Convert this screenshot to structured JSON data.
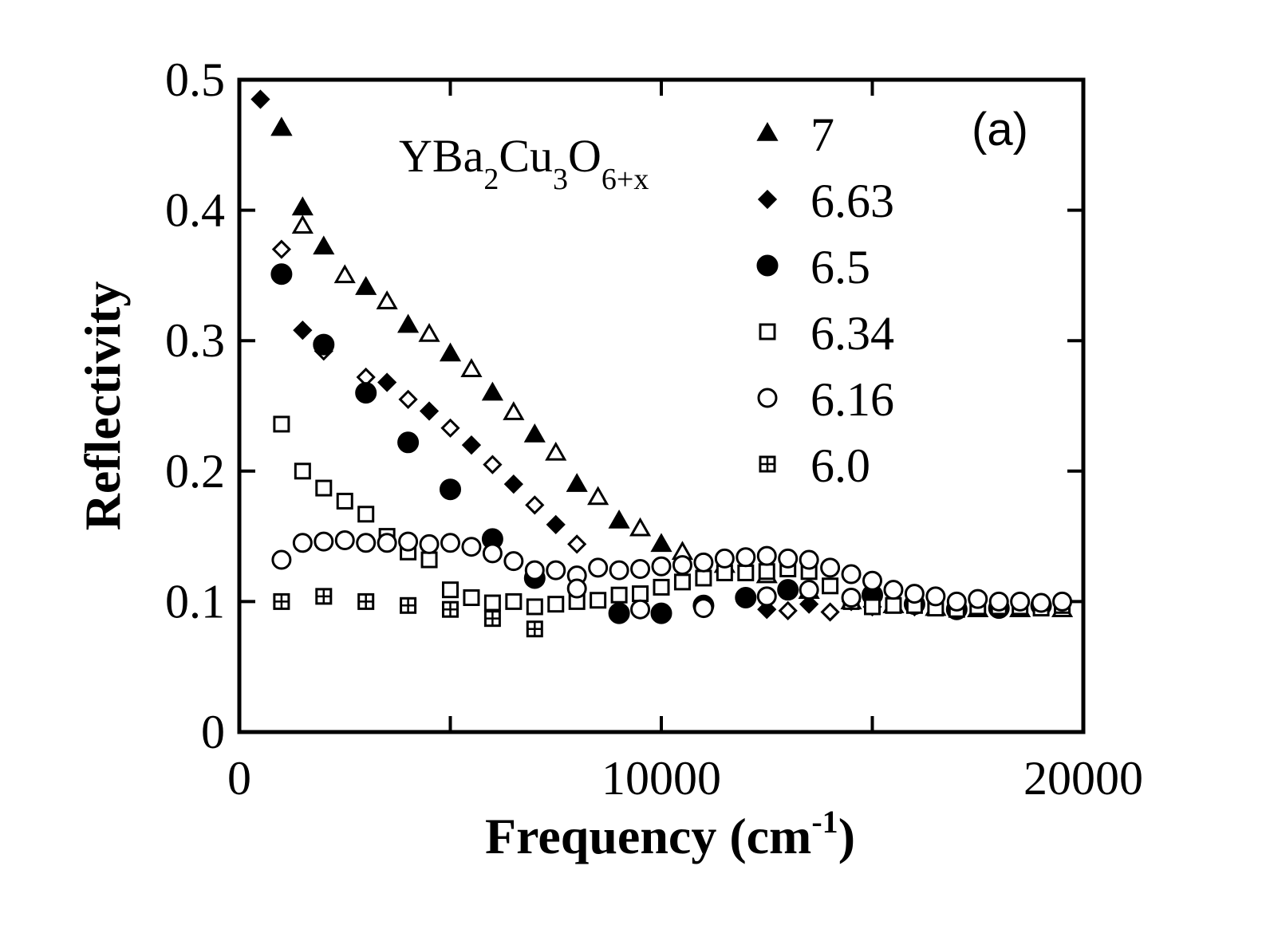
{
  "chart_data": {
    "type": "scatter",
    "title": "",
    "panel_label": "(a)",
    "xlabel": "Frequency (cm",
    "xlabel_sup": "-1",
    "xlabel_close": ")",
    "ylabel": "Reflectivity",
    "xlim": [
      0,
      20000
    ],
    "ylim": [
      0,
      0.5
    ],
    "xticks": [
      0,
      10000,
      20000
    ],
    "xtick_labels": [
      "0",
      "10000",
      "20000"
    ],
    "yticks": [
      0,
      0.1,
      0.2,
      0.3,
      0.4,
      0.5
    ],
    "ytick_labels": [
      "0",
      "0.1",
      "0.2",
      "0.3",
      "0.4",
      "0.5"
    ],
    "grid": false,
    "legend_position": "top-right",
    "legend_title": {
      "base1": "YBa",
      "sub1": "2",
      "base2": "Cu",
      "sub2": "3",
      "base3": "O",
      "sub3": "6+x"
    },
    "series": [
      {
        "name": "7",
        "marker": "triangle",
        "points": [
          [
            1000,
            0.463
          ],
          [
            1500,
            0.388
          ],
          [
            2500,
            0.35
          ],
          [
            3500,
            0.33
          ],
          [
            4500,
            0.305
          ],
          [
            5500,
            0.278
          ],
          [
            6500,
            0.245
          ],
          [
            7500,
            0.214
          ],
          [
            8500,
            0.18
          ],
          [
            9500,
            0.156
          ],
          [
            10500,
            0.138
          ],
          [
            11500,
            0.128
          ],
          [
            12500,
            0.12
          ],
          [
            13500,
            0.108
          ],
          [
            14500,
            0.1
          ],
          [
            15500,
            0.097
          ],
          [
            16500,
            0.095
          ],
          [
            17500,
            0.094
          ],
          [
            18500,
            0.094
          ],
          [
            19500,
            0.094
          ]
        ],
        "filled_points": [
          [
            1000,
            0.463
          ],
          [
            1500,
            0.402
          ],
          [
            2000,
            0.372
          ],
          [
            3000,
            0.341
          ],
          [
            4000,
            0.312
          ],
          [
            5000,
            0.29
          ],
          [
            6000,
            0.26
          ],
          [
            7000,
            0.228
          ],
          [
            8000,
            0.19
          ],
          [
            9000,
            0.162
          ],
          [
            10000,
            0.144
          ]
        ]
      },
      {
        "name": "6.63",
        "marker": "diamond",
        "points": [
          [
            1000,
            0.37
          ],
          [
            2000,
            0.292
          ],
          [
            3000,
            0.272
          ],
          [
            4000,
            0.255
          ],
          [
            5000,
            0.233
          ],
          [
            6000,
            0.205
          ],
          [
            7000,
            0.174
          ],
          [
            8000,
            0.144
          ],
          [
            13000,
            0.093
          ],
          [
            14000,
            0.092
          ],
          [
            15000,
            0.096
          ]
        ],
        "filled_points": [
          [
            500,
            0.485
          ],
          [
            1500,
            0.308
          ],
          [
            3500,
            0.268
          ],
          [
            4500,
            0.246
          ],
          [
            5500,
            0.22
          ],
          [
            6500,
            0.19
          ],
          [
            7500,
            0.159
          ],
          [
            12500,
            0.094
          ],
          [
            13500,
            0.098
          ],
          [
            14500,
            0.1
          ],
          [
            16000,
            0.096
          ],
          [
            17000,
            0.094
          ],
          [
            18000,
            0.095
          ],
          [
            19000,
            0.097
          ]
        ]
      },
      {
        "name": "6.5",
        "marker": "circle-filled",
        "points": [
          [
            1000,
            0.351
          ],
          [
            2000,
            0.297
          ],
          [
            3000,
            0.26
          ],
          [
            4000,
            0.222
          ],
          [
            5000,
            0.186
          ],
          [
            6000,
            0.148
          ],
          [
            7000,
            0.118
          ],
          [
            9000,
            0.091
          ],
          [
            10000,
            0.091
          ],
          [
            11000,
            0.097
          ],
          [
            12000,
            0.103
          ],
          [
            13000,
            0.109
          ],
          [
            15000,
            0.105
          ],
          [
            16000,
            0.098
          ],
          [
            17000,
            0.094
          ],
          [
            18000,
            0.095
          ],
          [
            19000,
            0.097
          ]
        ]
      },
      {
        "name": "6.34",
        "marker": "square",
        "points": [
          [
            1000,
            0.236
          ],
          [
            1500,
            0.2
          ],
          [
            2000,
            0.187
          ],
          [
            2500,
            0.177
          ],
          [
            3000,
            0.167
          ],
          [
            3500,
            0.15
          ],
          [
            4000,
            0.138
          ],
          [
            4500,
            0.132
          ],
          [
            5000,
            0.109
          ],
          [
            5500,
            0.103
          ],
          [
            6000,
            0.099
          ],
          [
            6500,
            0.1
          ],
          [
            7000,
            0.096
          ],
          [
            7500,
            0.098
          ],
          [
            8000,
            0.1
          ],
          [
            8500,
            0.101
          ],
          [
            9000,
            0.105
          ],
          [
            9500,
            0.106
          ],
          [
            10000,
            0.111
          ],
          [
            10500,
            0.115
          ],
          [
            11000,
            0.118
          ],
          [
            11500,
            0.122
          ],
          [
            12000,
            0.122
          ],
          [
            12500,
            0.123
          ],
          [
            13000,
            0.125
          ],
          [
            13500,
            0.123
          ],
          [
            14000,
            0.112
          ],
          [
            14500,
            0.1
          ],
          [
            15000,
            0.096
          ],
          [
            15500,
            0.097
          ],
          [
            16000,
            0.097
          ],
          [
            16500,
            0.095
          ],
          [
            17000,
            0.094
          ],
          [
            17500,
            0.096
          ],
          [
            18000,
            0.096
          ],
          [
            18500,
            0.096
          ],
          [
            19000,
            0.095
          ],
          [
            19500,
            0.097
          ]
        ]
      },
      {
        "name": "6.16",
        "marker": "circle",
        "points": [
          [
            1000,
            0.132
          ],
          [
            1500,
            0.145
          ],
          [
            2000,
            0.146
          ],
          [
            2500,
            0.147
          ],
          [
            3000,
            0.145
          ],
          [
            3500,
            0.145
          ],
          [
            4000,
            0.146
          ],
          [
            4500,
            0.144
          ],
          [
            5000,
            0.145
          ],
          [
            5500,
            0.142
          ],
          [
            6000,
            0.137
          ],
          [
            6500,
            0.131
          ],
          [
            7000,
            0.124
          ],
          [
            7500,
            0.124
          ],
          [
            8000,
            0.12
          ],
          [
            8500,
            0.126
          ],
          [
            9000,
            0.124
          ],
          [
            9500,
            0.125
          ],
          [
            10000,
            0.127
          ],
          [
            10500,
            0.128
          ],
          [
            11000,
            0.13
          ],
          [
            11500,
            0.133
          ],
          [
            12000,
            0.134
          ],
          [
            12500,
            0.135
          ],
          [
            13000,
            0.133
          ],
          [
            13500,
            0.132
          ],
          [
            14000,
            0.126
          ],
          [
            14500,
            0.121
          ],
          [
            15000,
            0.116
          ],
          [
            15500,
            0.109
          ],
          [
            16000,
            0.106
          ],
          [
            16500,
            0.104
          ],
          [
            17000,
            0.1
          ],
          [
            17500,
            0.102
          ],
          [
            18000,
            0.1
          ],
          [
            18500,
            0.1
          ],
          [
            19000,
            0.099
          ],
          [
            19500,
            0.1
          ],
          [
            8000,
            0.11
          ],
          [
            9500,
            0.094
          ],
          [
            11000,
            0.095
          ],
          [
            12500,
            0.104
          ],
          [
            13500,
            0.109
          ],
          [
            14500,
            0.103
          ]
        ]
      },
      {
        "name": "6.0",
        "marker": "square-crossed",
        "points": [
          [
            1000,
            0.1
          ],
          [
            2000,
            0.104
          ],
          [
            3000,
            0.1
          ],
          [
            4000,
            0.097
          ],
          [
            5000,
            0.094
          ],
          [
            6000,
            0.087
          ],
          [
            7000,
            0.079
          ]
        ]
      }
    ]
  }
}
